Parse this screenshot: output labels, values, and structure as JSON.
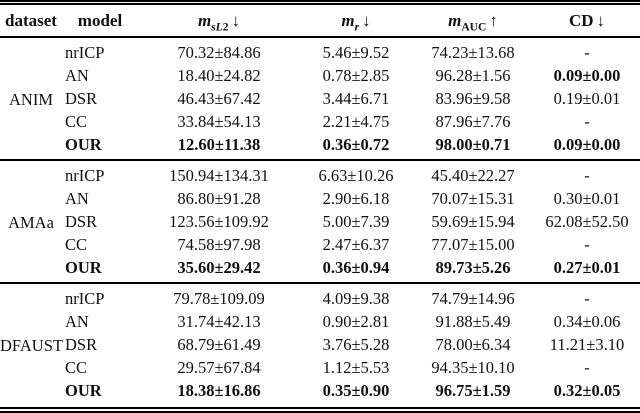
{
  "header": {
    "dataset": "dataset",
    "model": "model",
    "cols": {
      "msl2": {
        "m": "m",
        "sub_it": "sL",
        "sub_rm": "2",
        "arrow": "↓"
      },
      "mr": {
        "m": "m",
        "sub_it": "r",
        "sub_rm": "",
        "arrow": "↓"
      },
      "mauc": {
        "m": "m",
        "sub_it": "",
        "sub_rm": "AUC",
        "arrow": "↑"
      },
      "cd": {
        "label": "CD",
        "arrow": "↓"
      }
    }
  },
  "groups": [
    {
      "dataset": "ANIM",
      "rows": [
        {
          "model": "nrICP",
          "msl2": "70.32±84.86",
          "mr": "5.46±9.52",
          "mauc": "74.23±13.68",
          "cd": "-"
        },
        {
          "model": "AN",
          "msl2": "18.40±24.82",
          "mr": "0.78±2.85",
          "mauc": "96.28±1.56",
          "cd": "0.09±0.00"
        },
        {
          "model": "DSR",
          "msl2": "46.43±67.42",
          "mr": "3.44±6.71",
          "mauc": "83.96±9.58",
          "cd": "0.19±0.01"
        },
        {
          "model": "CC",
          "msl2": "33.84±54.13",
          "mr": "2.21±4.75",
          "mauc": "87.96±7.76",
          "cd": "-"
        },
        {
          "model": "OUR",
          "msl2": "12.60±11.38",
          "mr": "0.36±0.72",
          "mauc": "98.00±0.71",
          "cd": "0.09±0.00"
        }
      ]
    },
    {
      "dataset": "AMAa",
      "rows": [
        {
          "model": "nrICP",
          "msl2": "150.94±134.31",
          "mr": "6.63±10.26",
          "mauc": "45.40±22.27",
          "cd": "-"
        },
        {
          "model": "AN",
          "msl2": "86.80±91.28",
          "mr": "2.90±6.18",
          "mauc": "70.07±15.31",
          "cd": "0.30±0.01"
        },
        {
          "model": "DSR",
          "msl2": "123.56±109.92",
          "mr": "5.00±7.39",
          "mauc": "59.69±15.94",
          "cd": "62.08±52.50"
        },
        {
          "model": "CC",
          "msl2": "74.58±97.98",
          "mr": "2.47±6.37",
          "mauc": "77.07±15.00",
          "cd": "-"
        },
        {
          "model": "OUR",
          "msl2": "35.60±29.42",
          "mr": "0.36±0.94",
          "mauc": "89.73±5.26",
          "cd": "0.27±0.01"
        }
      ]
    },
    {
      "dataset": "DFAUST",
      "rows": [
        {
          "model": "nrICP",
          "msl2": "79.78±109.09",
          "mr": "4.09±9.38",
          "mauc": "74.79±14.96",
          "cd": "-"
        },
        {
          "model": "AN",
          "msl2": "31.74±42.13",
          "mr": "0.90±2.81",
          "mauc": "91.88±5.49",
          "cd": "0.34±0.06"
        },
        {
          "model": "DSR",
          "msl2": "68.79±61.49",
          "mr": "3.76±5.28",
          "mauc": "78.00±6.34",
          "cd": "11.21±3.10"
        },
        {
          "model": "CC",
          "msl2": "29.57±67.84",
          "mr": "1.12±5.53",
          "mauc": "94.35±10.10",
          "cd": "-"
        },
        {
          "model": "OUR",
          "msl2": "18.38±16.86",
          "mr": "0.35±0.90",
          "mauc": "96.75±1.59",
          "cd": "0.32±0.05"
        }
      ]
    }
  ],
  "styles": {
    "background": "#ffffff",
    "text_color": "#111111",
    "rule_color": "#000000"
  }
}
